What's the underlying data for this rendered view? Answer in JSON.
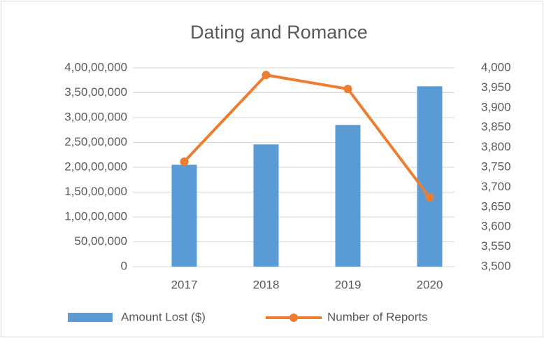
{
  "chart_data": {
    "type": "bar_line",
    "title": "Dating and Romance",
    "categories": [
      "2017",
      "2018",
      "2019",
      "2020"
    ],
    "series": [
      {
        "name": "Amount Lost ($)",
        "type": "bar",
        "color": "#5b9bd5",
        "values": [
          20500000,
          24600000,
          28500000,
          36300000
        ]
      },
      {
        "name": "Number of Reports",
        "type": "line",
        "axis": "y2",
        "color": "#ed7d31",
        "values": [
          3764,
          3982,
          3947,
          3674
        ]
      }
    ],
    "ylim": [
      0,
      40000000
    ],
    "yticks": [
      0,
      {
        "value": 5000000,
        "label": "50,00,000"
      },
      {
        "value": 10000000,
        "label": "1,00,00,000"
      },
      {
        "value": 15000000,
        "label": "1,50,00,000"
      },
      {
        "value": 20000000,
        "label": "2,00,00,000"
      },
      {
        "value": 25000000,
        "label": "2,50,00,000"
      },
      {
        "value": 30000000,
        "label": "3,00,00,000"
      },
      {
        "value": 35000000,
        "label": "3,50,00,000"
      },
      {
        "value": 40000000,
        "label": "4,00,00,000"
      }
    ],
    "y2lim": [
      3500,
      4000
    ],
    "y2ticks": [
      {
        "value": 3500,
        "label": "3,500"
      },
      {
        "value": 3550,
        "label": "3,550"
      },
      {
        "value": 3600,
        "label": "3,600"
      },
      {
        "value": 3650,
        "label": "3,650"
      },
      {
        "value": 3700,
        "label": "3,700"
      },
      {
        "value": 3750,
        "label": "3,750"
      },
      {
        "value": 3800,
        "label": "3,800"
      },
      {
        "value": 3850,
        "label": "3,850"
      },
      {
        "value": 3900,
        "label": "3,900"
      },
      {
        "value": 3950,
        "label": "3,950"
      },
      {
        "value": 4000,
        "label": "4,000"
      }
    ],
    "grid": true,
    "legend": "bottom"
  }
}
